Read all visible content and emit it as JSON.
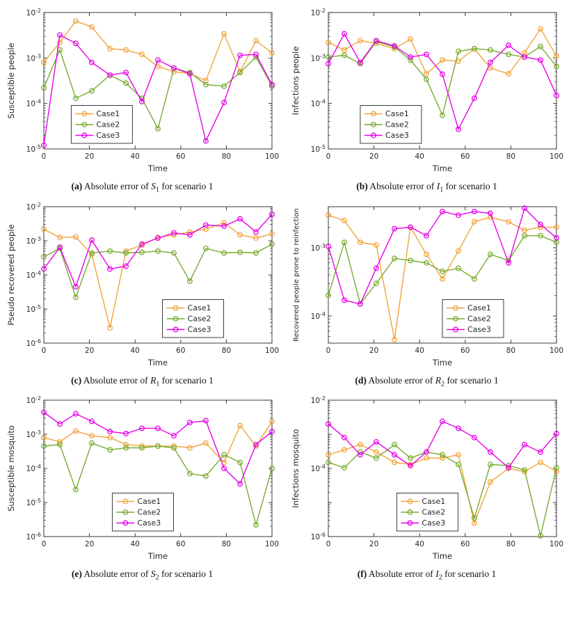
{
  "page": {
    "background": "#ffffff"
  },
  "colors": {
    "case1": "#F2A33C",
    "case2": "#77AC30",
    "case3": "#E800E8",
    "axis": "#262626"
  },
  "legend_labels": [
    "Case1",
    "Case2",
    "Case3"
  ],
  "chart_data": [
    {
      "id": "a",
      "type": "line",
      "xlabel": "Time",
      "ylabel": "Susceptible people",
      "xlim": [
        0,
        100
      ],
      "xticks": [
        0,
        20,
        40,
        60,
        80,
        100
      ],
      "ylim": [
        1e-05,
        0.01
      ],
      "ytick_exponents": [
        -5,
        -4,
        -3,
        -2
      ],
      "legend_pos": 0.12,
      "x": [
        0,
        7,
        14,
        21,
        29,
        36,
        43,
        50,
        57,
        64,
        71,
        79,
        86,
        93,
        100
      ],
      "series": [
        {
          "name": "Case1",
          "color": "case1",
          "values": [
            0.0008,
            0.0022,
            0.0065,
            0.0048,
            0.0016,
            0.0015,
            0.0012,
            0.00065,
            0.0005,
            0.00045,
            0.00032,
            0.0034,
            0.0005,
            0.0024,
            0.0013
          ]
        },
        {
          "name": "Case2",
          "color": "case2",
          "values": [
            0.00022,
            0.0015,
            0.00013,
            0.00019,
            0.00042,
            0.00028,
            0.00013,
            2.8e-05,
            0.0006,
            0.00048,
            0.00026,
            0.00024,
            0.00048,
            0.00105,
            0.00024
          ]
        },
        {
          "name": "Case3",
          "color": "case3",
          "values": [
            1.2e-05,
            0.0032,
            0.0021,
            0.0008,
            0.00042,
            0.00048,
            0.00011,
            0.0009,
            0.0006,
            0.00045,
            1.5e-05,
            0.000105,
            0.00115,
            0.0012,
            0.00026
          ]
        }
      ],
      "caption": {
        "label": "(a)",
        "text": "Absolute error of",
        "symbol": "S",
        "subscript": "1",
        "suffix": "for scenario 1"
      }
    },
    {
      "id": "b",
      "type": "line",
      "xlabel": "Time",
      "ylabel": "Infections people",
      "xlim": [
        0,
        100
      ],
      "xticks": [
        0,
        20,
        40,
        60,
        80,
        100
      ],
      "ylim": [
        1e-05,
        0.01
      ],
      "ytick_exponents": [
        -5,
        -4,
        -3,
        -2
      ],
      "legend_pos": 0.14,
      "x": [
        0,
        7,
        14,
        21,
        29,
        36,
        43,
        50,
        57,
        64,
        71,
        79,
        86,
        93,
        100
      ],
      "series": [
        {
          "name": "Case1",
          "color": "case1",
          "values": [
            0.0022,
            0.0015,
            0.0024,
            0.0021,
            0.0016,
            0.0026,
            0.00045,
            0.0009,
            0.00085,
            0.0016,
            0.0006,
            0.00045,
            0.0013,
            0.0044,
            0.0011
          ]
        },
        {
          "name": "Case2",
          "color": "case2",
          "values": [
            0.00105,
            0.00115,
            0.00075,
            0.0023,
            0.00175,
            0.0009,
            0.00034,
            5.5e-05,
            0.0014,
            0.0016,
            0.0015,
            0.0012,
            0.00105,
            0.0018,
            0.00065
          ]
        },
        {
          "name": "Case3",
          "color": "case3",
          "values": [
            0.00075,
            0.0034,
            0.0008,
            0.0024,
            0.00185,
            0.00105,
            0.0012,
            0.00044,
            2.7e-05,
            0.00013,
            0.0008,
            0.0019,
            0.00105,
            0.0009,
            0.00015
          ]
        }
      ],
      "caption": {
        "label": "(b)",
        "text": "Absolute error of",
        "symbol": "I",
        "subscript": "1",
        "suffix": "for scenario 1"
      }
    },
    {
      "id": "c",
      "type": "line",
      "xlabel": "Time",
      "ylabel": "Pseudo recovered people",
      "xlim": [
        0,
        100
      ],
      "xticks": [
        0,
        20,
        40,
        60,
        80,
        100
      ],
      "ylim": [
        1e-06,
        0.01
      ],
      "ytick_exponents": [
        -6,
        -5,
        -4,
        -3,
        -2
      ],
      "legend_pos": 0.52,
      "x": [
        0,
        7,
        14,
        21,
        29,
        36,
        43,
        50,
        57,
        64,
        71,
        79,
        86,
        93,
        100
      ],
      "series": [
        {
          "name": "Case1",
          "color": "case1",
          "values": [
            0.0022,
            0.00125,
            0.0013,
            0.0004,
            2.8e-06,
            0.0005,
            0.00075,
            0.00125,
            0.0015,
            0.0018,
            0.0022,
            0.0034,
            0.0015,
            0.0012,
            0.0016
          ]
        },
        {
          "name": "Case2",
          "color": "case2",
          "values": [
            0.00034,
            0.0006,
            2.2e-05,
            0.00044,
            0.0005,
            0.00044,
            0.00046,
            0.0005,
            0.00044,
            6.5e-05,
            0.0006,
            0.00044,
            0.00046,
            0.00044,
            0.0008
          ]
        },
        {
          "name": "Case3",
          "color": "case3",
          "values": [
            0.00015,
            0.00065,
            4.5e-05,
            0.00105,
            0.00015,
            0.00018,
            0.0008,
            0.0012,
            0.0017,
            0.0015,
            0.0029,
            0.0027,
            0.0044,
            0.0018,
            0.006
          ]
        }
      ],
      "caption": {
        "label": "(c)",
        "text": "Absolute error of",
        "symbol": "R",
        "subscript": "1",
        "suffix": "for scenario 1"
      }
    },
    {
      "id": "d",
      "type": "line",
      "xlabel": "Time",
      "ylabel": "Recovered people prone to reinfection",
      "xlim": [
        0,
        100
      ],
      "xticks": [
        0,
        20,
        40,
        60,
        80,
        100
      ],
      "ylim": [
        4e-05,
        0.004
      ],
      "ytick_exponents": [
        -4,
        -3
      ],
      "legend_pos": 0.5,
      "x": [
        0,
        7,
        14,
        21,
        29,
        36,
        43,
        50,
        57,
        64,
        71,
        79,
        86,
        93,
        100
      ],
      "series": [
        {
          "name": "Case1",
          "color": "case1",
          "values": [
            0.003,
            0.0025,
            0.0012,
            0.0011,
            4.5e-05,
            0.002,
            0.0008,
            0.00035,
            0.0009,
            0.0024,
            0.0028,
            0.0024,
            0.0018,
            0.002,
            0.002
          ]
        },
        {
          "name": "Case2",
          "color": "case2",
          "values": [
            0.0002,
            0.0012,
            0.00015,
            0.0003,
            0.0007,
            0.00065,
            0.0006,
            0.00045,
            0.0005,
            0.00035,
            0.0008,
            0.00065,
            0.0015,
            0.0015,
            0.0012
          ]
        },
        {
          "name": "Case3",
          "color": "case3",
          "values": [
            0.00105,
            0.00017,
            0.00015,
            0.0005,
            0.0019,
            0.002,
            0.0015,
            0.0034,
            0.003,
            0.0034,
            0.0032,
            0.0006,
            0.0038,
            0.0022,
            0.0014
          ]
        }
      ],
      "caption": {
        "label": "(d)",
        "text": "Absolute error of",
        "symbol": "R",
        "subscript": "2",
        "suffix": "for scenario 1"
      }
    },
    {
      "id": "e",
      "type": "line",
      "xlabel": "Time",
      "ylabel": "Susceptible mosquito",
      "xlim": [
        0,
        100
      ],
      "xticks": [
        0,
        20,
        40,
        60,
        80,
        100
      ],
      "ylim": [
        1e-06,
        0.01
      ],
      "ytick_exponents": [
        -6,
        -5,
        -4,
        -3,
        -2
      ],
      "legend_pos": 0.3,
      "x": [
        0,
        7,
        14,
        21,
        29,
        36,
        43,
        50,
        57,
        64,
        71,
        79,
        86,
        93,
        100
      ],
      "series": [
        {
          "name": "Case1",
          "color": "case1",
          "values": [
            0.0008,
            0.0006,
            0.00125,
            0.0009,
            0.0008,
            0.0005,
            0.00045,
            0.00045,
            0.00045,
            0.0004,
            0.00055,
            0.00015,
            0.0018,
            0.00045,
            0.0024
          ]
        },
        {
          "name": "Case2",
          "color": "case2",
          "values": [
            0.00045,
            0.0005,
            2.4e-05,
            0.00055,
            0.00035,
            0.0004,
            0.0004,
            0.00045,
            0.0004,
            7e-05,
            6e-05,
            0.00025,
            0.00015,
            2.2e-06,
            0.0001
          ]
        },
        {
          "name": "Case3",
          "color": "case3",
          "values": [
            0.0044,
            0.002,
            0.004,
            0.0024,
            0.0012,
            0.00105,
            0.0015,
            0.0015,
            0.0009,
            0.0022,
            0.0025,
            0.0001,
            3.5e-05,
            0.0005,
            0.0012
          ]
        }
      ],
      "caption": {
        "label": "(e)",
        "text": "Absolute error of",
        "symbol": "S",
        "subscript": "2",
        "suffix": "for scenario 1"
      }
    },
    {
      "id": "f",
      "type": "line",
      "xlabel": "Time",
      "ylabel": "Infections mosquito",
      "xlim": [
        0,
        100
      ],
      "xticks": [
        0,
        20,
        40,
        60,
        80,
        100
      ],
      "ylim": [
        1e-06,
        0.01
      ],
      "ytick_exponents": [
        -6,
        -4,
        -2
      ],
      "legend_pos": 0.3,
      "x": [
        0,
        7,
        14,
        21,
        29,
        36,
        43,
        50,
        57,
        64,
        71,
        79,
        86,
        93,
        100
      ],
      "series": [
        {
          "name": "Case1",
          "color": "case1",
          "values": [
            0.00025,
            0.00035,
            0.0005,
            0.0003,
            0.00015,
            0.00013,
            0.0002,
            0.0002,
            0.00025,
            2.5e-06,
            4e-05,
            0.0001,
            8e-05,
            0.00015,
            8e-05
          ]
        },
        {
          "name": "Case2",
          "color": "case2",
          "values": [
            0.00015,
            0.000105,
            0.0003,
            0.0002,
            0.0005,
            0.0002,
            0.0003,
            0.00025,
            0.00013,
            3.5e-06,
            0.00013,
            0.00012,
            9e-05,
            1.05e-06,
            0.000105
          ]
        },
        {
          "name": "Case3",
          "color": "case3",
          "values": [
            0.002,
            0.0008,
            0.00025,
            0.0006,
            0.00025,
            0.00012,
            0.0003,
            0.0024,
            0.0015,
            0.0008,
            0.0003,
            0.000105,
            0.0005,
            0.0003,
            0.00105
          ]
        }
      ],
      "caption": {
        "label": "(f)",
        "text": "Absolute error of",
        "symbol": "I",
        "subscript": "2",
        "suffix": "for scenario 1"
      }
    }
  ]
}
